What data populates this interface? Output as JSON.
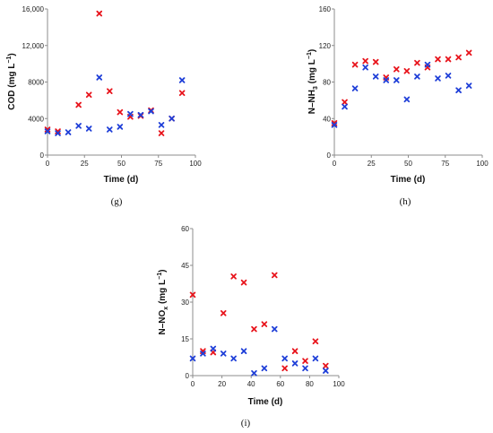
{
  "colors": {
    "red": "#e8141c",
    "blue": "#1f3fd8",
    "axis": "#8c8c8c"
  },
  "marker": "x-cross",
  "chart_data": [
    {
      "type": "scatter",
      "panel_label": "(g)",
      "xlabel": "Time (d)",
      "ylabel_main": "COD (mg L",
      "ylabel_sup": "−1",
      "ylabel_tail": ")",
      "xlim": [
        0,
        100
      ],
      "ylim": [
        0,
        16000
      ],
      "xticks": [
        "0",
        "25",
        "50",
        "75",
        "100"
      ],
      "yticks": [
        "0",
        "4000",
        "8000",
        "12,000",
        "16,000"
      ],
      "series": [
        {
          "color_key": "red",
          "x": [
            0,
            7,
            21,
            28,
            35,
            42,
            49,
            56,
            63,
            70,
            77,
            84,
            91
          ],
          "y": [
            2800,
            2600,
            5500,
            6600,
            15500,
            7000,
            4700,
            4200,
            4300,
            4900,
            2400,
            4000,
            6800
          ]
        },
        {
          "color_key": "blue",
          "x": [
            0,
            7,
            14,
            21,
            28,
            35,
            42,
            49,
            56,
            63,
            70,
            77,
            84,
            91
          ],
          "y": [
            2600,
            2400,
            2500,
            3200,
            2900,
            8500,
            2800,
            3100,
            4500,
            4400,
            4800,
            3300,
            4000,
            8200
          ]
        }
      ]
    },
    {
      "type": "scatter",
      "panel_label": "(h)",
      "xlabel": "Time (d)",
      "ylabel_main": "N–NH",
      "ylabel_sub": "3",
      "ylabel_mid": " (mg L",
      "ylabel_sup": "−1",
      "ylabel_tail": ")",
      "xlim": [
        0,
        100
      ],
      "ylim": [
        0,
        160
      ],
      "xticks": [
        "0",
        "25",
        "50",
        "75",
        "100"
      ],
      "yticks": [
        "0",
        "40",
        "80",
        "120",
        "160"
      ],
      "series": [
        {
          "color_key": "red",
          "x": [
            0,
            7,
            14,
            21,
            28,
            35,
            42,
            49,
            56,
            63,
            70,
            77,
            84,
            91
          ],
          "y": [
            35,
            58,
            99,
            103,
            102,
            85,
            94,
            92,
            101,
            96,
            105,
            105,
            107,
            112
          ]
        },
        {
          "color_key": "blue",
          "x": [
            0,
            7,
            14,
            21,
            28,
            35,
            42,
            49,
            56,
            63,
            70,
            77,
            84,
            91
          ],
          "y": [
            33,
            53,
            73,
            96,
            86,
            82,
            82,
            61,
            86,
            99,
            84,
            87,
            71,
            76
          ]
        }
      ]
    },
    {
      "type": "scatter",
      "panel_label": "(i)",
      "xlabel": "Time (d)",
      "ylabel_main": "N–NO",
      "ylabel_sub": "x",
      "ylabel_mid": " (mg L",
      "ylabel_sup": "−1",
      "ylabel_tail": ")",
      "xlim": [
        0,
        100
      ],
      "ylim": [
        0,
        60
      ],
      "xticks": [
        "0",
        "20",
        "40",
        "60",
        "80",
        "100"
      ],
      "yticks": [
        "0",
        "15",
        "30",
        "45",
        "60"
      ],
      "series": [
        {
          "color_key": "red",
          "x": [
            0,
            7,
            14,
            21,
            28,
            35,
            42,
            49,
            56,
            63,
            70,
            77,
            84,
            91
          ],
          "y": [
            33,
            10,
            9.5,
            25.5,
            40.5,
            38,
            19,
            21,
            41,
            3,
            10,
            6,
            14,
            4
          ]
        },
        {
          "color_key": "blue",
          "x": [
            0,
            7,
            14,
            21,
            28,
            35,
            42,
            49,
            56,
            63,
            70,
            77,
            84,
            91
          ],
          "y": [
            7,
            9,
            11,
            9,
            7,
            10,
            1,
            3,
            19,
            7,
            5,
            3,
            7,
            2
          ]
        }
      ]
    }
  ]
}
